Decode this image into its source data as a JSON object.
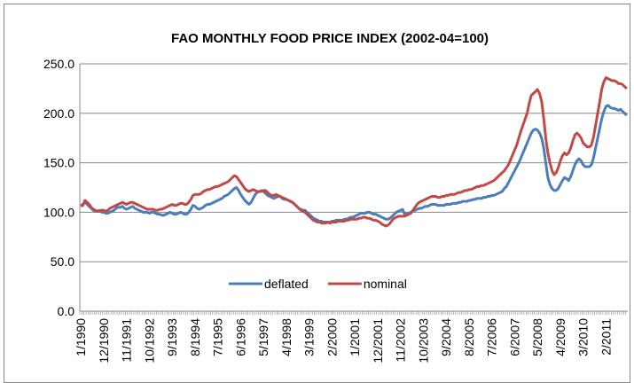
{
  "chart_data": {
    "type": "line",
    "title": "FAO MONTHLY FOOD PRICE INDEX (2002-04=100)",
    "categories": [
      "1/1990",
      null,
      null,
      null,
      null,
      null,
      null,
      null,
      null,
      null,
      null,
      "12/1990",
      null,
      null,
      null,
      null,
      null,
      null,
      null,
      null,
      null,
      null,
      "11/1991",
      null,
      null,
      null,
      null,
      null,
      null,
      null,
      null,
      null,
      null,
      "10/1992",
      null,
      null,
      null,
      null,
      null,
      null,
      null,
      null,
      null,
      null,
      "9/1993",
      null,
      null,
      null,
      null,
      null,
      null,
      null,
      null,
      null,
      null,
      "8/1994",
      null,
      null,
      null,
      null,
      null,
      null,
      null,
      null,
      null,
      null,
      "7/1995",
      null,
      null,
      null,
      null,
      null,
      null,
      null,
      null,
      null,
      null,
      "6/1996",
      null,
      null,
      null,
      null,
      null,
      null,
      null,
      null,
      null,
      null,
      "5/1997",
      null,
      null,
      null,
      null,
      null,
      null,
      null,
      null,
      null,
      null,
      "4/1998",
      null,
      null,
      null,
      null,
      null,
      null,
      null,
      null,
      null,
      null,
      "3/1999",
      null,
      null,
      null,
      null,
      null,
      null,
      null,
      null,
      null,
      null,
      "2/2000",
      null,
      null,
      null,
      null,
      null,
      null,
      null,
      null,
      null,
      null,
      "1/2001",
      null,
      null,
      null,
      null,
      null,
      null,
      null,
      null,
      null,
      null,
      "12/2001",
      null,
      null,
      null,
      null,
      null,
      null,
      null,
      null,
      null,
      null,
      "11/2002",
      null,
      null,
      null,
      null,
      null,
      null,
      null,
      null,
      null,
      null,
      "10/2003",
      null,
      null,
      null,
      null,
      null,
      null,
      null,
      null,
      null,
      null,
      "9/2004",
      null,
      null,
      null,
      null,
      null,
      null,
      null,
      null,
      null,
      null,
      "8/2005",
      null,
      null,
      null,
      null,
      null,
      null,
      null,
      null,
      null,
      null,
      "7/2006",
      null,
      null,
      null,
      null,
      null,
      null,
      null,
      null,
      null,
      null,
      "6/2007",
      null,
      null,
      null,
      null,
      null,
      null,
      null,
      null,
      null,
      null,
      "5/2008",
      null,
      null,
      null,
      null,
      null,
      null,
      null,
      null,
      null,
      null,
      "4/2009",
      null,
      null,
      null,
      null,
      null,
      null,
      null,
      null,
      null,
      null,
      "3/2010",
      null,
      null,
      null,
      null,
      null,
      null,
      null,
      null,
      null,
      null,
      "2/2011",
      null,
      null,
      null,
      null,
      null,
      null,
      null,
      null,
      null,
      null
    ],
    "series": [
      {
        "name": "deflated",
        "color": "#4a7ebb",
        "values": [
          107,
          108,
          110,
          108,
          106,
          104,
          102,
          101,
          101,
          102,
          100,
          100,
          99,
          99,
          100,
          101,
          102,
          104,
          105,
          105,
          106,
          104,
          103,
          104,
          105,
          106,
          104,
          103,
          102,
          101,
          100,
          100,
          100,
          99,
          100,
          100,
          99,
          98,
          98,
          97,
          97,
          98,
          99,
          100,
          99,
          98,
          98,
          99,
          100,
          99,
          98,
          98,
          100,
          103,
          107,
          106,
          104,
          103,
          104,
          105,
          107,
          108,
          108,
          109,
          110,
          111,
          112,
          113,
          114,
          116,
          117,
          118,
          120,
          122,
          124,
          125,
          122,
          118,
          115,
          112,
          110,
          108,
          110,
          114,
          118,
          120,
          121,
          122,
          121,
          119,
          117,
          116,
          115,
          114,
          115,
          116,
          116,
          114,
          113,
          113,
          112,
          111,
          110,
          108,
          106,
          104,
          103,
          102,
          102,
          100,
          98,
          96,
          94,
          93,
          92,
          91,
          91,
          90,
          90,
          90,
          90,
          91,
          91,
          92,
          92,
          92,
          92,
          93,
          93,
          94,
          95,
          95,
          96,
          97,
          98,
          99,
          99,
          99,
          100,
          100,
          99,
          98,
          98,
          97,
          96,
          95,
          94,
          93,
          93,
          94,
          96,
          98,
          100,
          101,
          102,
          103,
          98,
          99,
          99,
          100,
          101,
          102,
          103,
          104,
          104,
          105,
          106,
          106,
          107,
          108,
          108,
          108,
          107,
          107,
          107,
          107,
          108,
          108,
          108,
          109,
          109,
          109,
          110,
          110,
          111,
          111,
          111,
          112,
          112,
          113,
          113,
          114,
          114,
          114,
          115,
          115,
          116,
          116,
          117,
          117,
          118,
          119,
          120,
          121,
          124,
          126,
          130,
          134,
          138,
          142,
          146,
          150,
          155,
          160,
          165,
          170,
          175,
          180,
          183,
          184,
          183,
          180,
          175,
          165,
          150,
          135,
          128,
          124,
          122,
          122,
          124,
          128,
          132,
          135,
          134,
          132,
          136,
          142,
          148,
          152,
          154,
          152,
          148,
          146,
          146,
          146,
          148,
          155,
          165,
          175,
          185,
          195,
          202,
          207,
          208,
          206,
          205,
          205,
          204,
          203,
          204,
          202,
          200,
          198
        ]
      },
      {
        "name": "nominal",
        "color": "#be4b48",
        "values": [
          106,
          107,
          112,
          110,
          108,
          105,
          103,
          102,
          101,
          101,
          102,
          102,
          101,
          102,
          104,
          105,
          106,
          107,
          108,
          109,
          110,
          109,
          108,
          109,
          110,
          110,
          109,
          108,
          107,
          106,
          105,
          104,
          103,
          103,
          103,
          103,
          102,
          102,
          103,
          103,
          104,
          105,
          106,
          107,
          108,
          107,
          107,
          108,
          109,
          109,
          108,
          108,
          110,
          113,
          117,
          118,
          118,
          118,
          119,
          121,
          122,
          123,
          123,
          124,
          125,
          126,
          126,
          127,
          128,
          129,
          130,
          131,
          133,
          135,
          137,
          136,
          133,
          130,
          127,
          124,
          122,
          121,
          122,
          123,
          122,
          121,
          121,
          121,
          122,
          122,
          120,
          118,
          117,
          117,
          118,
          117,
          116,
          115,
          114,
          113,
          112,
          111,
          110,
          108,
          106,
          104,
          102,
          101,
          100,
          98,
          96,
          94,
          92,
          91,
          90,
          90,
          89,
          89,
          89,
          90,
          89,
          90,
          90,
          90,
          91,
          91,
          91,
          91,
          92,
          92,
          93,
          93,
          93,
          93,
          94,
          94,
          95,
          95,
          94,
          94,
          93,
          92,
          92,
          91,
          90,
          88,
          87,
          86,
          87,
          89,
          92,
          94,
          95,
          96,
          96,
          96,
          96,
          97,
          98,
          99,
          102,
          105,
          108,
          110,
          111,
          112,
          113,
          114,
          115,
          116,
          116,
          116,
          115,
          115,
          116,
          116,
          117,
          117,
          118,
          118,
          118,
          119,
          120,
          120,
          121,
          122,
          122,
          123,
          123,
          124,
          125,
          126,
          126,
          127,
          127,
          128,
          129,
          130,
          131,
          132,
          134,
          136,
          138,
          140,
          142,
          145,
          148,
          153,
          158,
          163,
          168,
          175,
          182,
          188,
          194,
          200,
          210,
          218,
          220,
          222,
          224,
          220,
          212,
          195,
          175,
          160,
          150,
          142,
          138,
          140,
          145,
          152,
          157,
          160,
          158,
          160,
          165,
          172,
          178,
          180,
          178,
          175,
          170,
          168,
          166,
          166,
          168,
          176,
          188,
          200,
          212,
          225,
          232,
          236,
          235,
          234,
          233,
          233,
          232,
          230,
          230,
          229,
          227,
          225
        ]
      }
    ],
    "ylim": [
      0,
      250
    ],
    "yticks": [
      {
        "value": 0,
        "label": "0.0"
      },
      {
        "value": 50,
        "label": "50.0"
      },
      {
        "value": 100,
        "label": "100.0"
      },
      {
        "value": 150,
        "label": "150.0"
      },
      {
        "value": 200,
        "label": "200.0"
      },
      {
        "value": 250,
        "label": "250.0"
      }
    ],
    "grid": true,
    "legend": "bottom"
  }
}
